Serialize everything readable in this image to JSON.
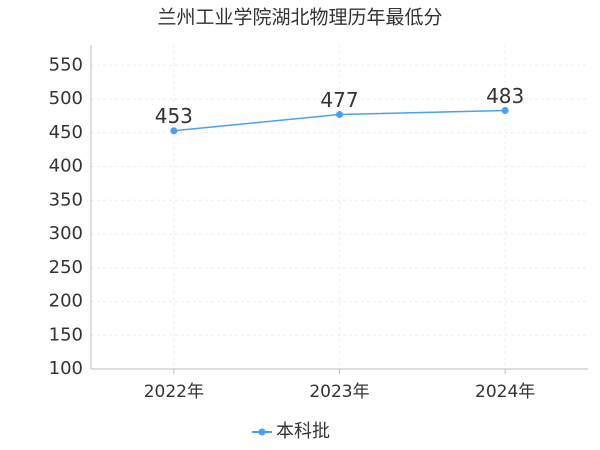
{
  "chart_data": {
    "type": "line",
    "title": "兰州工业学院湖北物理历年最低分",
    "categories": [
      "2022年",
      "2023年",
      "2024年"
    ],
    "series": [
      {
        "name": "本科批",
        "color": "#4a9ff5",
        "values": [
          453,
          477,
          483
        ]
      }
    ],
    "ylim": [
      100,
      580
    ],
    "yticks": [
      100,
      150,
      200,
      250,
      300,
      350,
      400,
      450,
      500,
      550
    ],
    "grid": true
  }
}
